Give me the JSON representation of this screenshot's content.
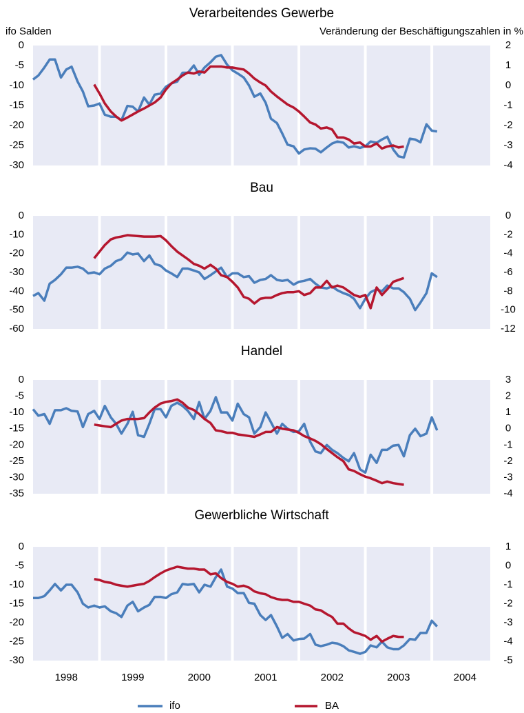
{
  "chart_data": [
    {
      "type": "line",
      "title": "Verarbeitendes Gewerbe",
      "ylabel": "ifo Salden",
      "y2label": "Veränderung der Beschäftigungszahlen in %",
      "xlim": [
        1998,
        2004.88
      ],
      "xgrid": [
        1999,
        2000,
        2001,
        2002,
        2003,
        2004
      ],
      "x": [
        1998,
        1998.08,
        1998.17,
        1998.25,
        1998.33,
        1998.42,
        1998.5,
        1998.58,
        1998.67,
        1998.75,
        1998.83,
        1998.92,
        1999,
        1999.08,
        1999.17,
        1999.25,
        1999.33,
        1999.42,
        1999.5,
        1999.58,
        1999.67,
        1999.75,
        1999.83,
        1999.92,
        2000,
        2000.08,
        2000.17,
        2000.25,
        2000.33,
        2000.42,
        2000.5,
        2000.58,
        2000.67,
        2000.75,
        2000.83,
        2000.92,
        2001,
        2001.08,
        2001.17,
        2001.25,
        2001.33,
        2001.42,
        2001.5,
        2001.58,
        2001.67,
        2001.75,
        2001.83,
        2001.92,
        2002,
        2002.08,
        2002.17,
        2002.25,
        2002.33,
        2002.42,
        2002.5,
        2002.58,
        2002.67,
        2002.75,
        2002.83,
        2002.92,
        2003,
        2003.08,
        2003.17,
        2003.25,
        2003.33,
        2003.42,
        2003.5,
        2003.58,
        2003.67,
        2003.75,
        2003.83,
        2003.92,
        2004,
        2004.08
      ],
      "ylim": [
        -30,
        0
      ],
      "yticks": [
        0,
        -5,
        -10,
        -15,
        -20,
        -25,
        -30
      ],
      "y2lim": [
        -4,
        2
      ],
      "y2ticks": [
        2,
        1,
        0,
        -1,
        -2,
        -3,
        -4
      ],
      "series": [
        {
          "name": "ifo",
          "color": "#4a7ebb",
          "values": [
            -8.5,
            -7.5,
            -5.5,
            -3.5,
            -3.5,
            -8,
            -6,
            -5.3,
            -9,
            -11.5,
            -15.2,
            -15,
            -14.5,
            -17.3,
            -17.8,
            -17.8,
            -18.7,
            -15.1,
            -15.3,
            -16.5,
            -13,
            -14.8,
            -12.3,
            -12,
            -10.3,
            -9.5,
            -9,
            -6.8,
            -6.8,
            -5,
            -7.3,
            -5.5,
            -4.2,
            -2.8,
            -2.4,
            -4.8,
            -6.2,
            -7,
            -8,
            -10,
            -12.8,
            -12,
            -14.3,
            -18.3,
            -19.4,
            -22,
            -24.8,
            -25.2,
            -27,
            -26,
            -25.7,
            -25.8,
            -26.7,
            -25.5,
            -24.5,
            -24,
            -24.3,
            -25.5,
            -25.2,
            -25.6,
            -25.2,
            -24,
            -24.3,
            -23.5,
            -22.8,
            -26,
            -27.7,
            -28,
            -23.3,
            -23.5,
            -24.2,
            -19.7,
            -21.3,
            -21.5
          ]
        },
        {
          "name": "BA",
          "color": "#b5172f",
          "axis": "y2",
          "values": [
            null,
            null,
            null,
            null,
            null,
            null,
            null,
            null,
            null,
            null,
            null,
            0.05,
            -0.4,
            -0.9,
            -1.3,
            -1.55,
            -1.75,
            -1.6,
            -1.45,
            -1.3,
            -1.15,
            -1.0,
            -0.85,
            -0.6,
            -0.2,
            0.1,
            0.3,
            0.5,
            0.65,
            0.6,
            0.7,
            0.65,
            0.95,
            0.95,
            0.95,
            0.9,
            0.9,
            0.85,
            0.8,
            0.6,
            0.35,
            0.15,
            0.0,
            -0.3,
            -0.55,
            -0.75,
            -0.95,
            -1.1,
            -1.3,
            -1.55,
            -1.85,
            -1.95,
            -2.15,
            -2.1,
            -2.2,
            -2.6,
            -2.6,
            -2.7,
            -2.9,
            -2.85,
            -3.05,
            -3.05,
            -2.9,
            -3.15,
            -3.05,
            -3.0,
            -3.1,
            -3.05,
            null,
            null,
            null,
            null,
            null,
            null
          ]
        }
      ]
    },
    {
      "type": "line",
      "title": "Bau",
      "xlim": [
        1998,
        2004.88
      ],
      "xgrid": [
        1999,
        2000,
        2001,
        2002,
        2003,
        2004
      ],
      "x": [
        1998,
        1998.08,
        1998.17,
        1998.25,
        1998.33,
        1998.42,
        1998.5,
        1998.58,
        1998.67,
        1998.75,
        1998.83,
        1998.92,
        1999,
        1999.08,
        1999.17,
        1999.25,
        1999.33,
        1999.42,
        1999.5,
        1999.58,
        1999.67,
        1999.75,
        1999.83,
        1999.92,
        2000,
        2000.08,
        2000.17,
        2000.25,
        2000.33,
        2000.42,
        2000.5,
        2000.58,
        2000.67,
        2000.75,
        2000.83,
        2000.92,
        2001,
        2001.08,
        2001.17,
        2001.25,
        2001.33,
        2001.42,
        2001.5,
        2001.58,
        2001.67,
        2001.75,
        2001.83,
        2001.92,
        2002,
        2002.08,
        2002.17,
        2002.25,
        2002.33,
        2002.42,
        2002.5,
        2002.58,
        2002.67,
        2002.75,
        2002.83,
        2002.92,
        2003,
        2003.08,
        2003.17,
        2003.25,
        2003.33,
        2003.42,
        2003.5,
        2003.58,
        2003.67,
        2003.75,
        2003.83,
        2003.92,
        2004,
        2004.08
      ],
      "ylim": [
        -60,
        0
      ],
      "yticks": [
        0,
        -10,
        -20,
        -30,
        -40,
        -50,
        -60
      ],
      "y2lim": [
        -12,
        0
      ],
      "y2ticks": [
        0,
        -2,
        -4,
        -6,
        -8,
        -10,
        -12
      ],
      "series": [
        {
          "name": "ifo",
          "color": "#4a7ebb",
          "values": [
            -42.5,
            -41,
            -45,
            -36,
            -34,
            -31,
            -27.5,
            -27.5,
            -27,
            -28,
            -30.5,
            -30,
            -31,
            -28,
            -26.5,
            -24,
            -23,
            -19.5,
            -20.5,
            -20,
            -24,
            -21,
            -25.5,
            -26.5,
            -29,
            -30.5,
            -32.5,
            -28,
            -28,
            -29,
            -30,
            -33.5,
            -31.5,
            -29.5,
            -27.5,
            -32.5,
            -30.5,
            -30.5,
            -32.5,
            -32,
            -35.5,
            -34,
            -33.5,
            -31.5,
            -34,
            -34.5,
            -34,
            -36.5,
            -35,
            -34.5,
            -33.5,
            -36,
            -38,
            -38.5,
            -37.5,
            -39.5,
            -41,
            -42,
            -44,
            -49,
            -44,
            -40.5,
            -39,
            -40,
            -37,
            -38.5,
            -38.5,
            -40.5,
            -44,
            -50,
            -46,
            -41,
            -30.5,
            -32.5
          ]
        },
        {
          "name": "BA",
          "color": "#b5172f",
          "axis": "y2",
          "values": [
            null,
            null,
            null,
            null,
            null,
            null,
            null,
            null,
            null,
            null,
            null,
            -4.5,
            -3.8,
            -3.1,
            -2.5,
            -2.3,
            -2.2,
            -2.05,
            -2.1,
            -2.15,
            -2.2,
            -2.2,
            -2.2,
            -2.15,
            -2.6,
            -3.2,
            -3.8,
            -4.2,
            -4.6,
            -5.1,
            -5.3,
            -5.6,
            -5.2,
            -5.6,
            -6.3,
            -6.5,
            -7.0,
            -7.6,
            -8.6,
            -8.8,
            -9.3,
            -8.8,
            -8.7,
            -8.7,
            -8.4,
            -8.2,
            -8.1,
            -8.1,
            -8.0,
            -8.4,
            -8.2,
            -7.6,
            -7.6,
            -6.9,
            -7.6,
            -7.4,
            -7.6,
            -8.0,
            -8.4,
            -8.6,
            -8.4,
            -9.8,
            -7.6,
            -8.4,
            -7.8,
            -7.0,
            -6.8,
            -6.6,
            null,
            null,
            null,
            null,
            null,
            null
          ]
        }
      ]
    },
    {
      "type": "line",
      "title": "Handel",
      "xlim": [
        1998,
        2004.88
      ],
      "xgrid": [
        1999,
        2000,
        2001,
        2002,
        2003,
        2004
      ],
      "x": [
        1998,
        1998.08,
        1998.17,
        1998.25,
        1998.33,
        1998.42,
        1998.5,
        1998.58,
        1998.67,
        1998.75,
        1998.83,
        1998.92,
        1999,
        1999.08,
        1999.17,
        1999.25,
        1999.33,
        1999.42,
        1999.5,
        1999.58,
        1999.67,
        1999.75,
        1999.83,
        1999.92,
        2000,
        2000.08,
        2000.17,
        2000.25,
        2000.33,
        2000.42,
        2000.5,
        2000.58,
        2000.67,
        2000.75,
        2000.83,
        2000.92,
        2001,
        2001.08,
        2001.17,
        2001.25,
        2001.33,
        2001.42,
        2001.5,
        2001.58,
        2001.67,
        2001.75,
        2001.83,
        2001.92,
        2002,
        2002.08,
        2002.17,
        2002.25,
        2002.33,
        2002.42,
        2002.5,
        2002.58,
        2002.67,
        2002.75,
        2002.83,
        2002.92,
        2003,
        2003.08,
        2003.17,
        2003.25,
        2003.33,
        2003.42,
        2003.5,
        2003.58,
        2003.67,
        2003.75,
        2003.83,
        2003.92,
        2004,
        2004.08
      ],
      "ylim": [
        -35,
        0
      ],
      "yticks": [
        0,
        -5,
        -10,
        -15,
        -20,
        -25,
        -30,
        -35
      ],
      "y2lim": [
        -4,
        3
      ],
      "y2ticks": [
        3,
        2,
        1,
        0,
        -1,
        -2,
        -3,
        -4
      ],
      "series": [
        {
          "name": "ifo",
          "color": "#4a7ebb",
          "values": [
            -9,
            -11,
            -10.5,
            -13.5,
            -9.3,
            -9.3,
            -8.7,
            -9.5,
            -9.7,
            -14.5,
            -10.5,
            -9.5,
            -12,
            -8,
            -11.5,
            -13.5,
            -16.5,
            -13.5,
            -9.8,
            -17,
            -17.5,
            -13.5,
            -9,
            -9,
            -11.5,
            -8,
            -7,
            -8,
            -9.5,
            -12,
            -6.8,
            -12,
            -9.5,
            -5.3,
            -10,
            -10,
            -12.5,
            -7.3,
            -10.5,
            -11.5,
            -16.5,
            -14.5,
            -10,
            -13,
            -16.5,
            -13.5,
            -15,
            -16,
            -15.8,
            -13.5,
            -19,
            -22,
            -22.5,
            -20,
            -21.5,
            -22.5,
            -24,
            -25,
            -22.5,
            -27.5,
            -28.5,
            -23,
            -25.5,
            -21.5,
            -21.5,
            -20.2,
            -20,
            -23.5,
            -17,
            -15,
            -17.3,
            -16.5,
            -11.5,
            -15.5
          ]
        },
        {
          "name": "BA",
          "color": "#b5172f",
          "axis": "y2",
          "values": [
            null,
            null,
            null,
            null,
            null,
            null,
            null,
            null,
            null,
            null,
            null,
            0.25,
            0.2,
            0.15,
            0.1,
            0.3,
            0.5,
            0.6,
            0.6,
            0.6,
            0.65,
            1.0,
            1.3,
            1.55,
            1.65,
            1.7,
            1.8,
            1.6,
            1.3,
            1.15,
            0.9,
            0.6,
            0.35,
            -0.1,
            -0.15,
            -0.25,
            -0.25,
            -0.35,
            -0.4,
            -0.45,
            -0.5,
            -0.35,
            -0.2,
            -0.2,
            0.1,
            0.0,
            -0.05,
            -0.1,
            -0.25,
            -0.45,
            -0.6,
            -0.75,
            -0.95,
            -1.25,
            -1.5,
            -1.75,
            -2.0,
            -2.5,
            -2.6,
            -2.8,
            -2.95,
            -3.05,
            -3.2,
            -3.35,
            -3.25,
            -3.35,
            -3.4,
            -3.45,
            null,
            null,
            null,
            null,
            null,
            null
          ]
        }
      ]
    },
    {
      "type": "line",
      "title": "Gewerbliche Wirtschaft",
      "xlim": [
        1998,
        2004.88
      ],
      "xgrid": [
        1999,
        2000,
        2001,
        2002,
        2003,
        2004
      ],
      "xticks": [
        {
          "value": 1998.5,
          "label": "1998"
        },
        {
          "value": 1999.5,
          "label": "1999"
        },
        {
          "value": 2000.5,
          "label": "2000"
        },
        {
          "value": 2001.5,
          "label": "2001"
        },
        {
          "value": 2002.5,
          "label": "2002"
        },
        {
          "value": 2003.5,
          "label": "2003"
        },
        {
          "value": 2004.5,
          "label": "2004"
        }
      ],
      "x": [
        1998,
        1998.08,
        1998.17,
        1998.25,
        1998.33,
        1998.42,
        1998.5,
        1998.58,
        1998.67,
        1998.75,
        1998.83,
        1998.92,
        1999,
        1999.08,
        1999.17,
        1999.25,
        1999.33,
        1999.42,
        1999.5,
        1999.58,
        1999.67,
        1999.75,
        1999.83,
        1999.92,
        2000,
        2000.08,
        2000.17,
        2000.25,
        2000.33,
        2000.42,
        2000.5,
        2000.58,
        2000.67,
        2000.75,
        2000.83,
        2000.92,
        2001,
        2001.08,
        2001.17,
        2001.25,
        2001.33,
        2001.42,
        2001.5,
        2001.58,
        2001.67,
        2001.75,
        2001.83,
        2001.92,
        2002,
        2002.08,
        2002.17,
        2002.25,
        2002.33,
        2002.42,
        2002.5,
        2002.58,
        2002.67,
        2002.75,
        2002.83,
        2002.92,
        2003,
        2003.08,
        2003.17,
        2003.25,
        2003.33,
        2003.42,
        2003.5,
        2003.58,
        2003.67,
        2003.75,
        2003.83,
        2003.92,
        2004,
        2004.08
      ],
      "ylim": [
        -30,
        0
      ],
      "yticks": [
        0,
        -5,
        -10,
        -15,
        -20,
        -25,
        -30
      ],
      "y2lim": [
        -5,
        1
      ],
      "y2ticks": [
        1,
        0,
        -1,
        -2,
        -3,
        -4,
        -5
      ],
      "series": [
        {
          "name": "ifo",
          "color": "#4a7ebb",
          "values": [
            -13.5,
            -13.5,
            -13,
            -11.5,
            -9.8,
            -11.5,
            -10,
            -10,
            -12,
            -15,
            -16,
            -15.5,
            -16,
            -15.7,
            -17,
            -17.5,
            -18.5,
            -15.5,
            -14.5,
            -17,
            -16,
            -15.3,
            -13.2,
            -13.2,
            -13.5,
            -12.5,
            -12,
            -9.8,
            -10,
            -9.8,
            -12,
            -10,
            -10.5,
            -8,
            -6,
            -10.5,
            -11,
            -12.2,
            -12.2,
            -14.8,
            -15,
            -18,
            -19.3,
            -18,
            -21,
            -24,
            -23,
            -24.7,
            -24.3,
            -24.2,
            -23,
            -25.8,
            -26.2,
            -25.8,
            -25.3,
            -25.5,
            -26.2,
            -27.3,
            -27.7,
            -28.2,
            -27.7,
            -26,
            -26.5,
            -25,
            -26.5,
            -27,
            -27,
            -26,
            -24.3,
            -24.5,
            -22.7,
            -22.7,
            -19.5,
            -21
          ]
        },
        {
          "name": "BA",
          "color": "#b5172f",
          "axis": "y2",
          "values": [
            null,
            null,
            null,
            null,
            null,
            null,
            null,
            null,
            null,
            null,
            null,
            -0.7,
            -0.75,
            -0.85,
            -0.9,
            -1.0,
            -1.05,
            -1.1,
            -1.05,
            -1.0,
            -0.95,
            -0.8,
            -0.6,
            -0.4,
            -0.25,
            -0.15,
            -0.05,
            -0.1,
            -0.15,
            -0.15,
            -0.2,
            -0.2,
            -0.45,
            -0.4,
            -0.65,
            -0.85,
            -0.95,
            -1.1,
            -1.05,
            -1.15,
            -1.35,
            -1.45,
            -1.5,
            -1.65,
            -1.75,
            -1.8,
            -1.8,
            -1.9,
            -1.9,
            -2.0,
            -2.1,
            -2.3,
            -2.35,
            -2.55,
            -2.7,
            -3.05,
            -3.05,
            -3.3,
            -3.5,
            -3.6,
            -3.7,
            -3.9,
            -3.7,
            -4.0,
            -3.85,
            -3.7,
            -3.75,
            -3.75,
            null,
            null,
            null,
            null,
            null,
            null
          ]
        }
      ]
    }
  ]
}
